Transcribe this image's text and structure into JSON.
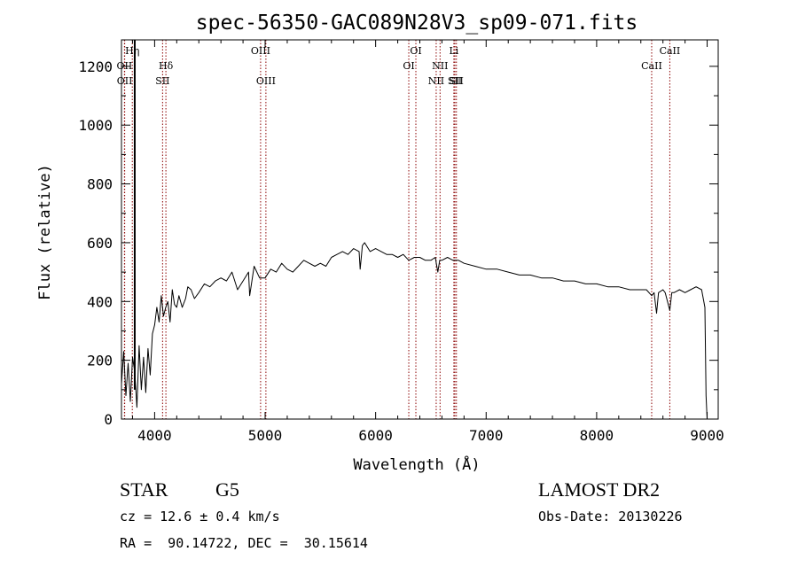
{
  "chart_data": {
    "type": "line",
    "title": "spec-56350-GAC089N28V3_sp09-071.fits",
    "xlabel": "Wavelength (Å)",
    "ylabel": "Flux (relative)",
    "xlim": [
      3700,
      9100
    ],
    "ylim": [
      0,
      1290
    ],
    "xticks": [
      4000,
      5000,
      6000,
      7000,
      8000,
      9000
    ],
    "yticks": [
      0,
      200,
      400,
      600,
      800,
      1000,
      1200
    ],
    "grid": false,
    "line_color": "#000000",
    "marker_color": "#8b0000",
    "series": [
      {
        "x": [
          3700,
          3720,
          3740,
          3760,
          3780,
          3800,
          3820,
          3840,
          3860,
          3880,
          3900,
          3920,
          3940,
          3960,
          3980,
          4000,
          4020,
          4040,
          4060,
          4080,
          4100,
          4120,
          4140,
          4160,
          4180,
          4200,
          4220,
          4250,
          4280,
          4300,
          4330,
          4360,
          4400,
          4450,
          4500,
          4550,
          4600,
          4650,
          4700,
          4750,
          4800,
          4850,
          4860,
          4900,
          4950,
          5000,
          5050,
          5100,
          5150,
          5200,
          5250,
          5300,
          5350,
          5400,
          5450,
          5500,
          5550,
          5600,
          5650,
          5700,
          5750,
          5800,
          5850,
          5860,
          5880,
          5900,
          5950,
          6000,
          6050,
          6100,
          6150,
          6200,
          6250,
          6300,
          6350,
          6400,
          6450,
          6500,
          6540,
          6563,
          6580,
          6600,
          6650,
          6700,
          6750,
          6800,
          6900,
          7000,
          7100,
          7200,
          7300,
          7400,
          7500,
          7600,
          7700,
          7800,
          7900,
          8000,
          8100,
          8200,
          8300,
          8400,
          8450,
          8498,
          8520,
          8542,
          8560,
          8600,
          8620,
          8662,
          8680,
          8700,
          8750,
          8800,
          8850,
          8900,
          8950,
          8980,
          8990,
          9000
        ],
        "y": [
          120,
          230,
          80,
          190,
          60,
          210,
          160,
          40,
          250,
          100,
          210,
          90,
          240,
          150,
          290,
          320,
          380,
          330,
          420,
          350,
          380,
          400,
          330,
          440,
          390,
          380,
          420,
          380,
          410,
          450,
          440,
          410,
          430,
          460,
          450,
          470,
          480,
          470,
          500,
          440,
          470,
          500,
          420,
          520,
          480,
          480,
          510,
          500,
          530,
          510,
          500,
          520,
          540,
          530,
          520,
          530,
          520,
          550,
          560,
          570,
          560,
          580,
          570,
          510,
          590,
          600,
          570,
          580,
          570,
          560,
          560,
          550,
          560,
          540,
          550,
          550,
          540,
          540,
          550,
          500,
          540,
          540,
          550,
          540,
          540,
          530,
          520,
          510,
          510,
          500,
          490,
          490,
          480,
          480,
          470,
          470,
          460,
          460,
          450,
          450,
          440,
          440,
          440,
          420,
          430,
          360,
          430,
          440,
          430,
          370,
          430,
          430,
          440,
          430,
          440,
          450,
          440,
          380,
          80,
          0
        ]
      }
    ],
    "lines": [
      {
        "x": 3727,
        "label": "OII",
        "level": 2
      },
      {
        "x": 3729,
        "label": "OII",
        "level": 3
      },
      {
        "x": 3798,
        "label": "Hη",
        "level": 1
      },
      {
        "x": 4072,
        "label": "SII",
        "level": 3
      },
      {
        "x": 4102,
        "label": "Hδ",
        "level": 2
      },
      {
        "x": 4959,
        "label": "OIII",
        "level": 1
      },
      {
        "x": 5007,
        "label": "OIII",
        "level": 3
      },
      {
        "x": 6300,
        "label": "OI",
        "level": 2
      },
      {
        "x": 6364,
        "label": "OI",
        "level": 1
      },
      {
        "x": 6548,
        "label": "NII",
        "level": 3
      },
      {
        "x": 6583,
        "label": "NII",
        "level": 2
      },
      {
        "x": 6708,
        "label": "Li",
        "level": 1
      },
      {
        "x": 6717,
        "label": "SII",
        "level": 3
      },
      {
        "x": 6731,
        "label": "SII",
        "level": 3
      },
      {
        "x": 8498,
        "label": "CaII",
        "level": 2
      },
      {
        "x": 8662,
        "label": "CaII",
        "level": 1
      }
    ],
    "spike": {
      "x": 3820,
      "y": 1290
    }
  },
  "info": {
    "class_label": "STAR",
    "subclass": "G5",
    "survey": "LAMOST DR2",
    "cz": "cz = 12.6 ± 0.4 km/s",
    "obs_date": "Obs-Date: 20130226",
    "coords": "RA =  90.14722, DEC =  30.15614"
  }
}
